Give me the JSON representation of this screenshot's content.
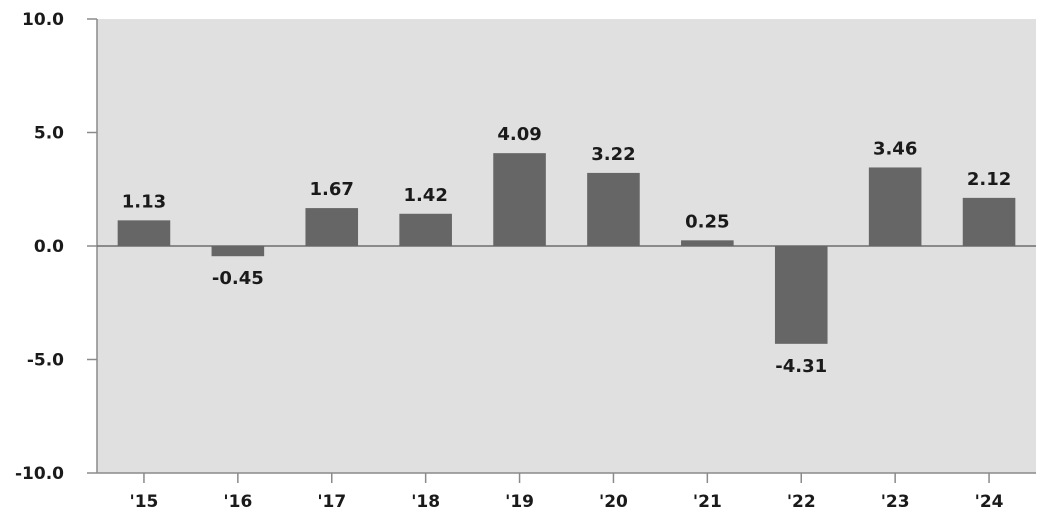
{
  "chart_data": {
    "type": "bar",
    "categories": [
      "'15",
      "'16",
      "'17",
      "'18",
      "'19",
      "'20",
      "'21",
      "'22",
      "'23",
      "'24"
    ],
    "values": [
      1.13,
      -0.45,
      1.67,
      1.42,
      4.09,
      3.22,
      0.25,
      -4.31,
      3.46,
      2.12
    ],
    "value_labels": [
      "1.13",
      "-0.45",
      "1.67",
      "1.42",
      "4.09",
      "3.22",
      "0.25",
      "-4.31",
      "3.46",
      "2.12"
    ],
    "y_ticks": [
      10,
      5,
      0,
      -5,
      -10
    ],
    "y_tick_labels": [
      "10.0",
      "5.0",
      "0.0",
      "-5.0",
      "-10.0"
    ],
    "ylim": [
      -10,
      10
    ],
    "title": "",
    "xlabel": "",
    "ylabel": "",
    "grid": false,
    "legend": "none",
    "colors": {
      "plot_background": "#e0e0e0",
      "bar": "#666666",
      "axis": "#8a8a8a",
      "zero_line": "#6e6e6e",
      "text": "#1a1a1a"
    }
  }
}
